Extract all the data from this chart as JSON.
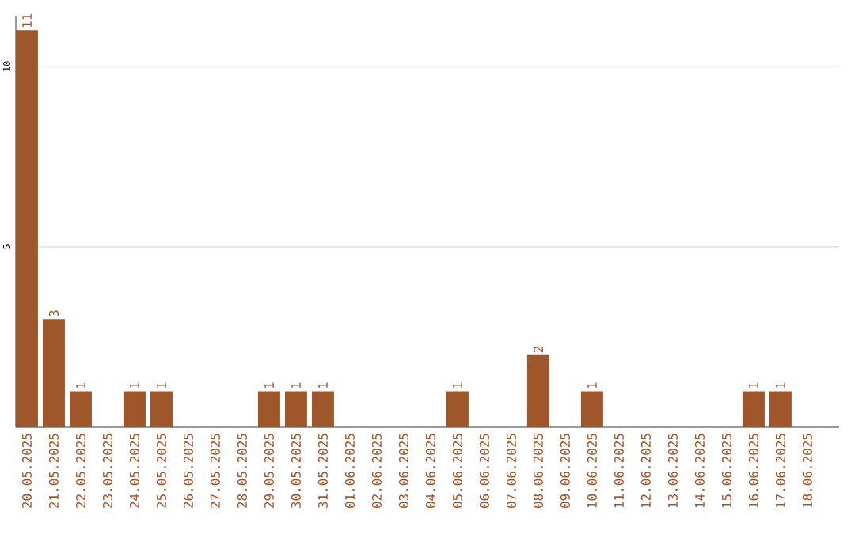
{
  "chart_data": {
    "type": "bar",
    "color": "#a0562b",
    "categories": [
      "20.05.2025",
      "21.05.2025",
      "22.05.2025",
      "23.05.2025",
      "24.05.2025",
      "25.05.2025",
      "26.05.2025",
      "27.05.2025",
      "28.05.2025",
      "29.05.2025",
      "30.05.2025",
      "31.05.2025",
      "01.06.2025",
      "02.06.2025",
      "03.06.2025",
      "04.06.2025",
      "05.06.2025",
      "06.06.2025",
      "07.06.2025",
      "08.06.2025",
      "09.06.2025",
      "10.06.2025",
      "11.06.2025",
      "12.06.2025",
      "13.06.2025",
      "14.06.2025",
      "15.06.2025",
      "16.06.2025",
      "17.06.2025",
      "18.06.2025"
    ],
    "values": [
      11,
      3,
      1,
      0,
      1,
      1,
      0,
      0,
      0,
      1,
      1,
      1,
      0,
      0,
      0,
      0,
      1,
      0,
      0,
      2,
      0,
      1,
      0,
      0,
      0,
      0,
      0,
      1,
      1,
      0
    ],
    "value_labels": [
      "11",
      "3",
      "1",
      null,
      "1",
      "1",
      null,
      null,
      null,
      "1",
      "1",
      "1",
      null,
      null,
      null,
      null,
      "1",
      null,
      null,
      "2",
      null,
      "1",
      null,
      null,
      null,
      null,
      null,
      "1",
      "1",
      null
    ],
    "ylim": [
      0,
      11.4
    ],
    "yticks": [
      5,
      10
    ],
    "grid": "y"
  }
}
